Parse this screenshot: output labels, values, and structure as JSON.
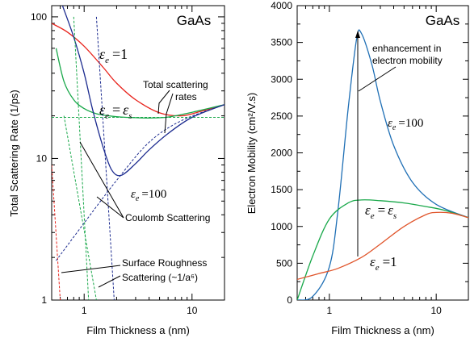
{
  "chart_data": [
    {
      "type": "line",
      "title": "GaAs",
      "xlabel": "Film Thickness a (nm)",
      "ylabel": "Total Scattering Rate (1/ps)",
      "x_scale": "log",
      "y_scale": "log",
      "xlim": [
        0.5,
        20
      ],
      "ylim": [
        1,
        120
      ],
      "x_ticks": [
        {
          "value": 1,
          "label": "1"
        },
        {
          "value": 10,
          "label": "10"
        }
      ],
      "y_ticks": [
        {
          "value": 1,
          "label": "1"
        },
        {
          "value": 10,
          "label": "10"
        },
        {
          "value": 100,
          "label": "100"
        }
      ],
      "series": [
        {
          "name": "εe = 1",
          "color": "#e8231c",
          "style": "solid",
          "x": [
            0.5,
            0.7,
            1,
            1.5,
            2,
            3,
            5,
            8,
            12,
            20
          ],
          "y": [
            90,
            78,
            62,
            44,
            34,
            26,
            21,
            20,
            21.5,
            24
          ]
        },
        {
          "name": "εe = εs",
          "color": "#19a84a",
          "style": "solid",
          "x": [
            0.55,
            0.65,
            0.8,
            1,
            1.3,
            1.7,
            2.2,
            3,
            4,
            6,
            10,
            20
          ],
          "y": [
            60,
            35,
            26,
            22.5,
            20.7,
            20,
            19.6,
            19.4,
            19.3,
            19.6,
            21.2,
            24
          ]
        },
        {
          "name": "εe = 100",
          "color": "#1c2b8f",
          "style": "solid",
          "x": [
            0.63,
            0.8,
            1,
            1.2,
            1.5,
            1.8,
            2.2,
            3,
            4,
            6,
            10,
            20
          ],
          "y": [
            120,
            72,
            40,
            22,
            12,
            8.3,
            7.6,
            9.2,
            11.5,
            15,
            19.5,
            24
          ]
        },
        {
          "name": "εe = 1 Coulomb",
          "color": "#e8231c",
          "style": "dashed",
          "x": [
            0.5,
            0.6
          ],
          "y": [
            9,
            1
          ]
        },
        {
          "name": "εe = εs Coulomb",
          "color": "#19a84a",
          "style": "dashed",
          "x": [
            0.65,
            1.3
          ],
          "y": [
            20,
            1
          ]
        },
        {
          "name": "εe = 100 Coulomb",
          "color": "#1c2b8f",
          "style": "dashed",
          "x": [
            0.55,
            1,
            2,
            4,
            8,
            20
          ],
          "y": [
            1.9,
            3.5,
            7,
            13,
            18.5,
            24
          ]
        },
        {
          "name": "Surface Roughness",
          "color": "#1c2b8f",
          "style": "dashed",
          "x": [
            1.3,
            1.9
          ],
          "y": [
            100,
            1
          ]
        },
        {
          "name": "Surface Roughness (green)",
          "color": "#19a84a",
          "style": "dashed",
          "x": [
            0.8,
            1.1
          ],
          "y": [
            100,
            1
          ]
        },
        {
          "name": "Phonon",
          "color": "#19a84a",
          "style": "dashed",
          "x": [
            0.5,
            20
          ],
          "y": [
            19.5,
            19.5
          ]
        }
      ],
      "annotations": [
        {
          "text": "GaAs"
        },
        {
          "text": "Total scattering",
          "text2": "rates"
        },
        {
          "text": "Coulomb Scattering"
        },
        {
          "text": "Surface Roughness"
        },
        {
          "text": "Scattering (~1/a⁶)"
        }
      ],
      "series_labels": [
        {
          "sym": "ε",
          "sub": "e",
          "rhs": "=1"
        },
        {
          "sym": "ε",
          "sub": "e",
          "rhs": "=",
          "rhs_sym": "ε",
          "rhs_sub": "s"
        },
        {
          "sym": "ε",
          "sub": "e",
          "rhs": "=100"
        }
      ]
    },
    {
      "type": "line",
      "title": "GaAs",
      "xlabel": "Film Thickness a (nm)",
      "ylabel": "Electron Mobility (cm²/V.s)",
      "x_scale": "log",
      "y_scale": "linear",
      "xlim": [
        0.5,
        20
      ],
      "ylim": [
        0,
        4000
      ],
      "x_ticks": [
        {
          "value": 1,
          "label": "1"
        },
        {
          "value": 10,
          "label": "10"
        }
      ],
      "y_ticks": [
        {
          "value": 0,
          "label": "0"
        },
        {
          "value": 500,
          "label": "500"
        },
        {
          "value": 1000,
          "label": "1000"
        },
        {
          "value": 1500,
          "label": "1500"
        },
        {
          "value": 2000,
          "label": "2000"
        },
        {
          "value": 2500,
          "label": "2500"
        },
        {
          "value": 3000,
          "label": "3000"
        },
        {
          "value": 3500,
          "label": "3500"
        },
        {
          "value": 4000,
          "label": "4000"
        }
      ],
      "series": [
        {
          "name": "εe = 100",
          "color": "#1f6fb5",
          "x": [
            0.5,
            0.7,
            1,
            1.2,
            1.5,
            1.8,
            2,
            2.5,
            3,
            4,
            6,
            10,
            20
          ],
          "y": [
            0,
            50,
            450,
            1200,
            2600,
            3550,
            3620,
            3200,
            2700,
            2100,
            1600,
            1300,
            1120
          ]
        },
        {
          "name": "εe = εs",
          "color": "#19a84a",
          "x": [
            0.5,
            0.7,
            1,
            1.5,
            2,
            3,
            5,
            8,
            12,
            20
          ],
          "y": [
            0,
            600,
            1100,
            1320,
            1360,
            1350,
            1320,
            1270,
            1220,
            1120
          ]
        },
        {
          "name": "εe = 1",
          "color": "#e0542a",
          "x": [
            0.5,
            0.8,
            1.2,
            2,
            3,
            5,
            8,
            10,
            14,
            20
          ],
          "y": [
            280,
            360,
            430,
            580,
            760,
            1000,
            1160,
            1190,
            1180,
            1120
          ]
        }
      ],
      "annotations": [
        {
          "text": "GaAs"
        },
        {
          "text": "enhancement in",
          "text2": "electron mobility"
        }
      ],
      "series_labels": [
        {
          "sym": "ε",
          "sub": "e",
          "rhs": "=100"
        },
        {
          "sym": "ε",
          "sub": "e",
          "rhs": "=",
          "rhs_sym": "ε",
          "rhs_sub": "s"
        },
        {
          "sym": "ε",
          "sub": "e",
          "rhs": "=1"
        }
      ]
    }
  ]
}
